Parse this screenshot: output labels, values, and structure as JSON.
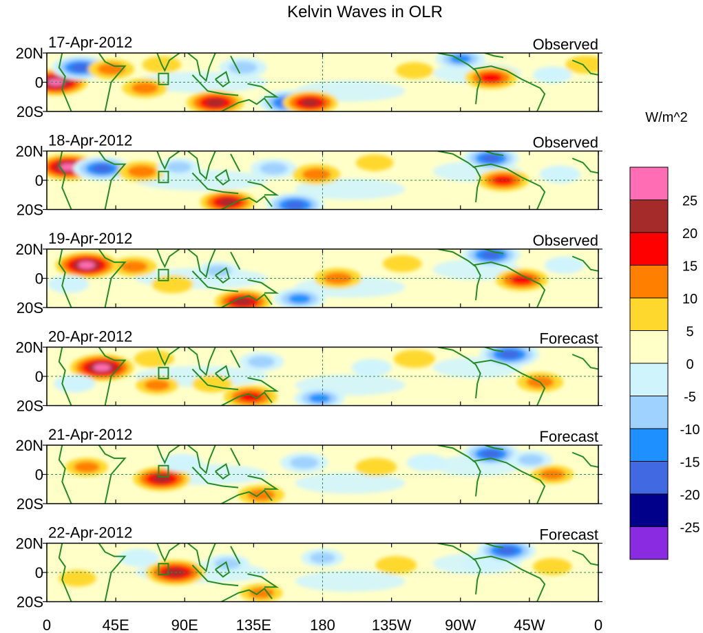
{
  "chart_data": {
    "type": "heatmap",
    "title": "Kelvin Waves in OLR",
    "units_label": "W/m^2",
    "x_ticks": [
      "0",
      "45E",
      "90E",
      "135E",
      "180",
      "135W",
      "90W",
      "45W",
      "0"
    ],
    "y_ticks": [
      "20N",
      "0",
      "20S"
    ],
    "lon_range": [
      0,
      360
    ],
    "lat_range": [
      -20,
      20
    ],
    "panels": [
      {
        "date": "17-Apr-2012",
        "status": "Observed"
      },
      {
        "date": "18-Apr-2012",
        "status": "Observed"
      },
      {
        "date": "19-Apr-2012",
        "status": "Observed"
      },
      {
        "date": "20-Apr-2012",
        "status": "Forecast"
      },
      {
        "date": "21-Apr-2012",
        "status": "Forecast"
      },
      {
        "date": "22-Apr-2012",
        "status": "Forecast"
      }
    ],
    "colorbar": {
      "labels": [
        "25",
        "20",
        "15",
        "10",
        "5",
        "0",
        "-5",
        "-10",
        "-15",
        "-20",
        "-25"
      ],
      "colors": [
        "#ff6eb4",
        "#a52a2a",
        "#ff0000",
        "#ff7f00",
        "#ffd82e",
        "#ffffc8",
        "#d0f4fc",
        "#a0d2ff",
        "#1e90ff",
        "#4169e1",
        "#00008b",
        "#8a2be2"
      ]
    },
    "anomalies": [
      [
        {
          "lon": 6,
          "lat": 0,
          "v": 27
        },
        {
          "lon": 22,
          "lat": 10,
          "v": -22
        },
        {
          "lon": 42,
          "lat": 9,
          "v": 13
        },
        {
          "lon": 64,
          "lat": -4,
          "v": 12
        },
        {
          "lon": 75,
          "lat": 12,
          "v": 7
        },
        {
          "lon": 110,
          "lat": -14,
          "v": 22
        },
        {
          "lon": 128,
          "lat": 10,
          "v": -14
        },
        {
          "lon": 158,
          "lat": -14,
          "v": -24
        },
        {
          "lon": 172,
          "lat": -14,
          "v": 20
        },
        {
          "lon": 240,
          "lat": 8,
          "v": 6
        },
        {
          "lon": 270,
          "lat": 16,
          "v": -16
        },
        {
          "lon": 290,
          "lat": 3,
          "v": 18
        },
        {
          "lon": 330,
          "lat": 5,
          "v": -7
        },
        {
          "lon": 352,
          "lat": 12,
          "v": 9
        }
      ],
      [
        {
          "lon": 14,
          "lat": 9,
          "v": 26
        },
        {
          "lon": 36,
          "lat": 8,
          "v": -22
        },
        {
          "lon": 62,
          "lat": 6,
          "v": 14
        },
        {
          "lon": 86,
          "lat": 9,
          "v": -10
        },
        {
          "lon": 118,
          "lat": -15,
          "v": 20
        },
        {
          "lon": 148,
          "lat": 8,
          "v": -13
        },
        {
          "lon": 162,
          "lat": -17,
          "v": -23
        },
        {
          "lon": 176,
          "lat": 4,
          "v": 14
        },
        {
          "lon": 214,
          "lat": 12,
          "v": 6
        },
        {
          "lon": 290,
          "lat": 15,
          "v": -21
        },
        {
          "lon": 298,
          "lat": 0,
          "v": 17
        },
        {
          "lon": 335,
          "lat": 4,
          "v": -9
        }
      ],
      [
        {
          "lon": 26,
          "lat": 9,
          "v": 26
        },
        {
          "lon": 14,
          "lat": -4,
          "v": -9
        },
        {
          "lon": 57,
          "lat": 8,
          "v": 12
        },
        {
          "lon": 82,
          "lat": -4,
          "v": 9
        },
        {
          "lon": 112,
          "lat": 5,
          "v": -11
        },
        {
          "lon": 128,
          "lat": -16,
          "v": 21
        },
        {
          "lon": 165,
          "lat": -14,
          "v": -17
        },
        {
          "lon": 190,
          "lat": 0,
          "v": 14
        },
        {
          "lon": 232,
          "lat": 10,
          "v": 7
        },
        {
          "lon": 290,
          "lat": 16,
          "v": -23
        },
        {
          "lon": 310,
          "lat": -1,
          "v": 18
        },
        {
          "lon": 338,
          "lat": 9,
          "v": -8
        }
      ],
      [
        {
          "lon": 36,
          "lat": 6,
          "v": 27
        },
        {
          "lon": 18,
          "lat": -5,
          "v": -9
        },
        {
          "lon": 70,
          "lat": 12,
          "v": 8
        },
        {
          "lon": 72,
          "lat": -6,
          "v": 10
        },
        {
          "lon": 108,
          "lat": -5,
          "v": 8
        },
        {
          "lon": 140,
          "lat": 10,
          "v": -12
        },
        {
          "lon": 133,
          "lat": -14,
          "v": 19
        },
        {
          "lon": 178,
          "lat": -15,
          "v": -16
        },
        {
          "lon": 212,
          "lat": 6,
          "v": -8
        },
        {
          "lon": 240,
          "lat": 12,
          "v": 9
        },
        {
          "lon": 302,
          "lat": 15,
          "v": -24
        },
        {
          "lon": 322,
          "lat": -4,
          "v": 13
        }
      ],
      [
        {
          "lon": 26,
          "lat": 5,
          "v": 10
        },
        {
          "lon": 75,
          "lat": -3,
          "v": 22
        },
        {
          "lon": 88,
          "lat": 8,
          "v": -9
        },
        {
          "lon": 140,
          "lat": -14,
          "v": 13
        },
        {
          "lon": 168,
          "lat": 8,
          "v": -14
        },
        {
          "lon": 215,
          "lat": 5,
          "v": 9
        },
        {
          "lon": 248,
          "lat": 8,
          "v": -8
        },
        {
          "lon": 290,
          "lat": 14,
          "v": -22
        },
        {
          "lon": 316,
          "lat": 10,
          "v": -10
        },
        {
          "lon": 330,
          "lat": 0,
          "v": 10
        }
      ],
      [
        {
          "lon": 20,
          "lat": -4,
          "v": 6
        },
        {
          "lon": 84,
          "lat": 0,
          "v": 24
        },
        {
          "lon": 60,
          "lat": 10,
          "v": -9
        },
        {
          "lon": 118,
          "lat": 6,
          "v": -11
        },
        {
          "lon": 140,
          "lat": -14,
          "v": 10
        },
        {
          "lon": 180,
          "lat": 10,
          "v": -10
        },
        {
          "lon": 228,
          "lat": 5,
          "v": 9
        },
        {
          "lon": 285,
          "lat": 6,
          "v": -9
        },
        {
          "lon": 300,
          "lat": 15,
          "v": -23
        },
        {
          "lon": 330,
          "lat": 4,
          "v": 7
        }
      ]
    ]
  }
}
